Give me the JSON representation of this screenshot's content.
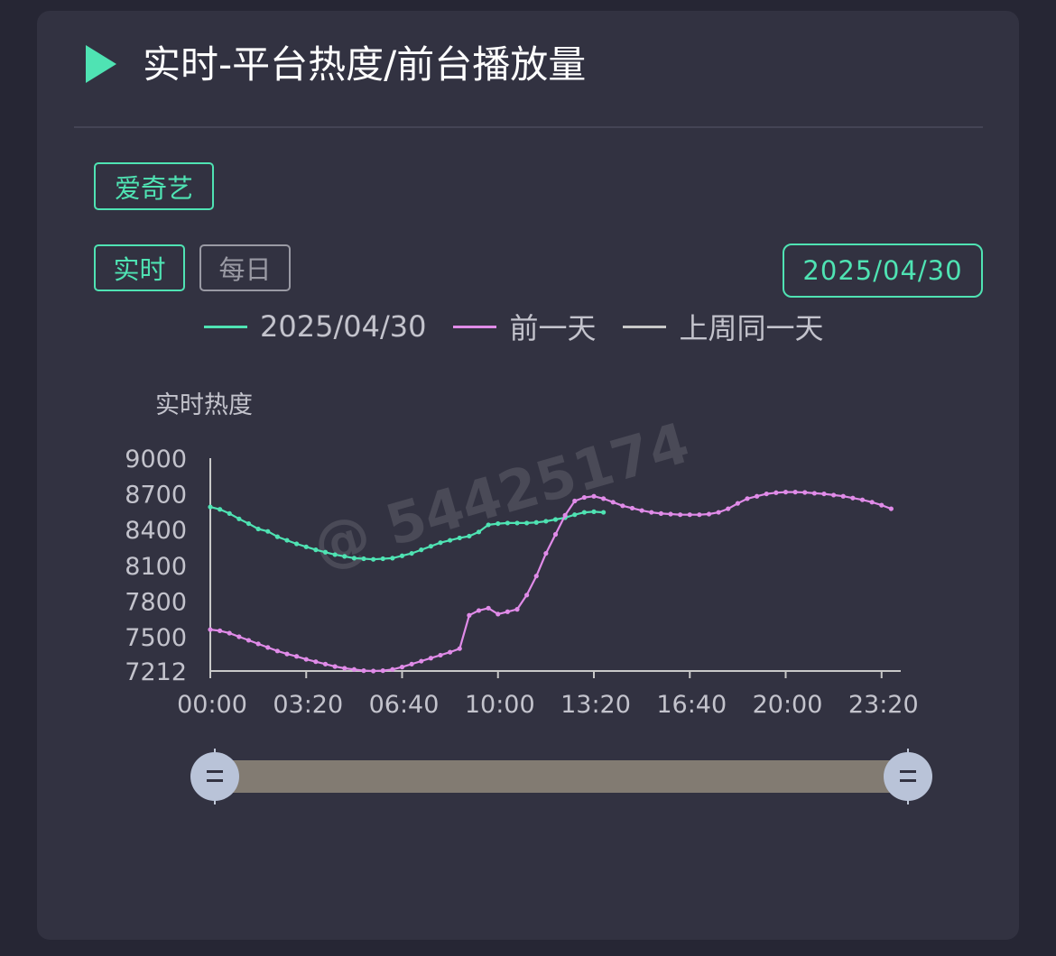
{
  "header": {
    "title": "实时-平台热度/前台播放量",
    "play_icon": "play-triangle-icon"
  },
  "filters": {
    "platform": "爱奇艺",
    "mode_realtime": "实时",
    "mode_daily": "每日",
    "date": "2025/04/30"
  },
  "colors": {
    "accent": "#4fe3b3",
    "today": "#4fe3b3",
    "yesterday": "#e08be8",
    "last_week": "#c8c8c8"
  },
  "watermark": "@  54425174",
  "chart_data": {
    "type": "line",
    "ylabel": "实时热度",
    "ylim": [
      7212,
      9000
    ],
    "yticks": [
      9000,
      8700,
      8400,
      8100,
      7800,
      7500,
      7212
    ],
    "xlim_minutes": [
      0,
      1440
    ],
    "xticks": [
      "00:00",
      "03:20",
      "06:40",
      "10:00",
      "13:20",
      "16:40",
      "20:00",
      "23:20"
    ],
    "legend_position": "top",
    "series": [
      {
        "name": "2025/04/30",
        "color": "#4fe3b3",
        "x": [
          "00:00",
          "00:20",
          "00:40",
          "01:00",
          "01:20",
          "01:40",
          "02:00",
          "02:20",
          "02:40",
          "03:00",
          "03:20",
          "03:40",
          "04:00",
          "04:20",
          "04:40",
          "05:00",
          "05:20",
          "05:40",
          "06:00",
          "06:20",
          "06:40",
          "07:00",
          "07:20",
          "07:40",
          "08:00",
          "08:20",
          "08:40",
          "09:00",
          "09:20",
          "09:40",
          "10:00",
          "10:20",
          "10:40",
          "11:00",
          "11:20",
          "11:40",
          "12:00",
          "12:20",
          "12:40",
          "13:00",
          "13:20",
          "13:40"
        ],
        "values": [
          8590,
          8570,
          8535,
          8490,
          8450,
          8405,
          8385,
          8340,
          8310,
          8280,
          8255,
          8230,
          8210,
          8190,
          8175,
          8160,
          8155,
          8150,
          8155,
          8160,
          8180,
          8200,
          8230,
          8260,
          8290,
          8310,
          8330,
          8345,
          8380,
          8440,
          8450,
          8455,
          8455,
          8455,
          8460,
          8470,
          8485,
          8500,
          8525,
          8545,
          8550,
          8545
        ]
      },
      {
        "name": "前一天",
        "color": "#e08be8",
        "x": [
          "00:00",
          "00:20",
          "00:40",
          "01:00",
          "01:20",
          "01:40",
          "02:00",
          "02:20",
          "02:40",
          "03:00",
          "03:20",
          "03:40",
          "04:00",
          "04:20",
          "04:40",
          "05:00",
          "05:20",
          "05:40",
          "06:00",
          "06:20",
          "06:40",
          "07:00",
          "07:20",
          "07:40",
          "08:00",
          "08:20",
          "08:40",
          "09:00",
          "09:20",
          "09:40",
          "10:00",
          "10:20",
          "10:40",
          "11:00",
          "11:20",
          "11:40",
          "12:00",
          "12:20",
          "12:40",
          "13:00",
          "13:20",
          "13:40",
          "14:00",
          "14:20",
          "14:40",
          "15:00",
          "15:20",
          "15:40",
          "16:00",
          "16:20",
          "16:40",
          "17:00",
          "17:20",
          "17:40",
          "18:00",
          "18:20",
          "18:40",
          "19:00",
          "19:20",
          "19:40",
          "20:00",
          "20:20",
          "20:40",
          "21:00",
          "21:20",
          "21:40",
          "22:00",
          "22:20",
          "22:40",
          "23:00",
          "23:20",
          "23:40"
        ],
        "values": [
          7560,
          7550,
          7530,
          7500,
          7470,
          7440,
          7410,
          7380,
          7355,
          7335,
          7310,
          7290,
          7270,
          7250,
          7235,
          7225,
          7215,
          7212,
          7215,
          7225,
          7245,
          7270,
          7295,
          7320,
          7345,
          7370,
          7400,
          7680,
          7720,
          7740,
          7690,
          7710,
          7730,
          7850,
          8010,
          8200,
          8360,
          8520,
          8640,
          8670,
          8680,
          8660,
          8630,
          8600,
          8580,
          8560,
          8545,
          8535,
          8530,
          8525,
          8525,
          8525,
          8530,
          8545,
          8575,
          8620,
          8660,
          8680,
          8700,
          8710,
          8715,
          8715,
          8712,
          8705,
          8700,
          8690,
          8680,
          8665,
          8650,
          8630,
          8605,
          8575
        ]
      },
      {
        "name": "上周同一天",
        "color": "#c8c8c8",
        "x": [],
        "values": []
      }
    ]
  },
  "slider": {
    "range_start": 0,
    "range_end": 1,
    "handle_icon": "drag-handle-icon"
  }
}
